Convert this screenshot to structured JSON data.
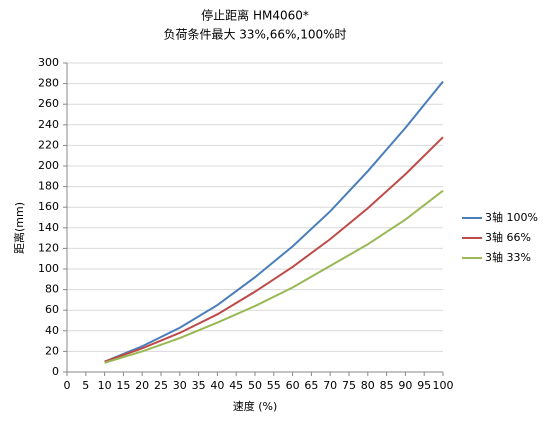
{
  "chart_data": {
    "type": "line",
    "title": "停止距离 HM4060*",
    "subtitle": "负荷条件最大 33%,66%,100%时",
    "x_label": "速度 (%)",
    "y_label": "距离(mm)",
    "x": [
      10,
      20,
      30,
      40,
      50,
      60,
      70,
      80,
      90,
      100
    ],
    "series": [
      {
        "name": "3轴 100%",
        "color": "#4a7ebb",
        "values": [
          10,
          25,
          43,
          65,
          92,
          122,
          156,
          195,
          237,
          282
        ]
      },
      {
        "name": "3轴 66%",
        "color": "#be4b48",
        "values": [
          10,
          23,
          38,
          56,
          78,
          102,
          129,
          159,
          192,
          228
        ]
      },
      {
        "name": "3轴 33%",
        "color": "#98b954",
        "values": [
          9,
          20,
          33,
          48,
          64,
          82,
          103,
          124,
          148,
          176
        ]
      }
    ],
    "xlim": [
      0,
      100
    ],
    "xticks": [
      0,
      5,
      10,
      15,
      20,
      25,
      30,
      35,
      40,
      45,
      50,
      55,
      60,
      65,
      70,
      75,
      80,
      85,
      90,
      95,
      100
    ],
    "ylim": [
      0,
      300
    ],
    "yticks": [
      0,
      20,
      40,
      60,
      80,
      100,
      120,
      140,
      160,
      180,
      200,
      220,
      240,
      260,
      280,
      300
    ],
    "grid": true,
    "legend": "right"
  }
}
